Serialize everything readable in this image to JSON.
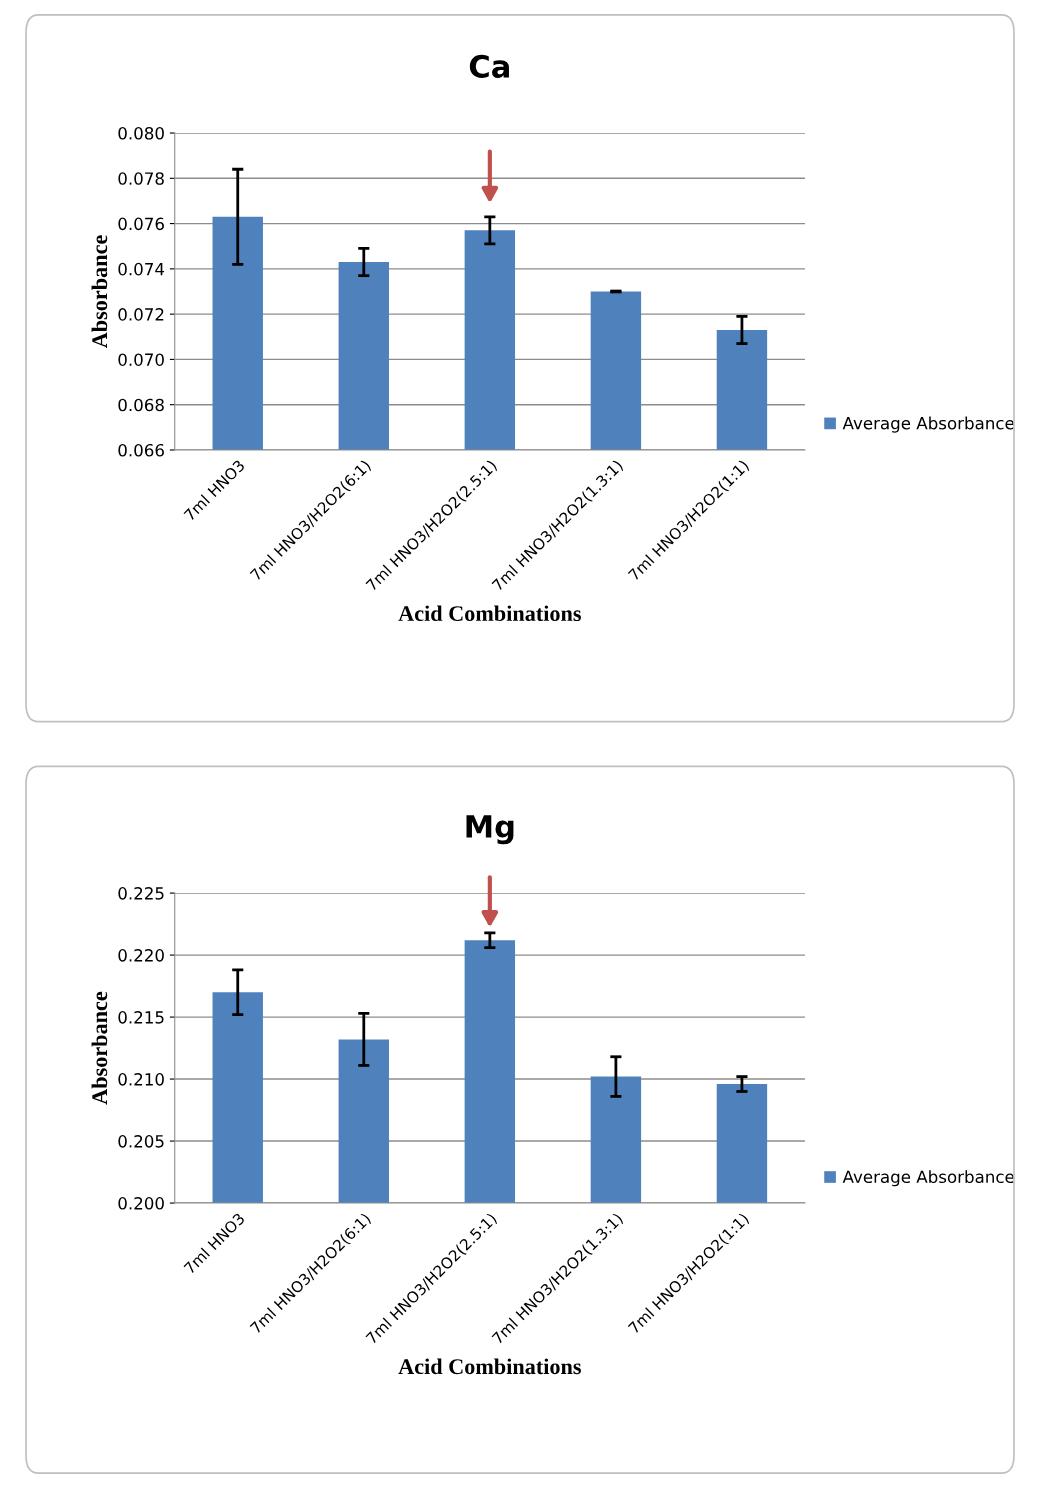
{
  "chart_data": [
    {
      "type": "bar",
      "title": "Ca",
      "xlabel": "Acid Combinations",
      "ylabel": "Absorbance",
      "categories": [
        "7ml HNO3",
        "7ml HNO3/H2O2(6:1)",
        "7ml HNO3/H2O2(2.5:1)",
        "7ml HNO3/H2O2(1.3:1)",
        "7ml HNO3/H2O2(1:1)"
      ],
      "series": [
        {
          "name": "Average Absorbance",
          "color": "#4f81bd",
          "values": [
            0.0763,
            0.0743,
            0.0757,
            0.073,
            0.0713
          ],
          "errors": [
            0.0021,
            0.0006,
            0.0006,
            2e-05,
            0.0006
          ]
        }
      ],
      "ylim": [
        0.066,
        0.08
      ],
      "yticks": [
        {
          "value": 0.066,
          "label": "0.066"
        },
        {
          "value": 0.068,
          "label": "0.068"
        },
        {
          "value": 0.07,
          "label": "0.070"
        },
        {
          "value": 0.072,
          "label": "0.072"
        },
        {
          "value": 0.074,
          "label": "0.074"
        },
        {
          "value": 0.076,
          "label": "0.076"
        },
        {
          "value": 0.078,
          "label": "0.078"
        },
        {
          "value": 0.08,
          "label": "0.080"
        }
      ],
      "grid": "y",
      "legend": "right"
    },
    {
      "type": "bar",
      "title": "Mg",
      "xlabel": "Acid Combinations",
      "ylabel": "Absorbance",
      "categories": [
        "7ml HNO3",
        "7ml HNO3/H2O2(6:1)",
        "7ml HNO3/H2O2(2.5:1)",
        "7ml HNO3/H2O2(1.3:1)",
        "7ml HNO3/H2O2(1:1)"
      ],
      "series": [
        {
          "name": "Average Absorbance",
          "color": "#4f81bd",
          "values": [
            0.217,
            0.2132,
            0.2212,
            0.2102,
            0.2096
          ],
          "errors": [
            0.0018,
            0.0021,
            0.0006,
            0.0016,
            0.0006
          ]
        }
      ],
      "ylim": [
        0.2,
        0.225
      ],
      "yticks": [
        {
          "value": 0.2,
          "label": "0.200"
        },
        {
          "value": 0.205,
          "label": "0.205"
        },
        {
          "value": 0.21,
          "label": "0.210"
        },
        {
          "value": 0.215,
          "label": "0.215"
        },
        {
          "value": 0.22,
          "label": "0.220"
        },
        {
          "value": 0.225,
          "label": "0.225"
        }
      ],
      "grid": "y",
      "legend": "right"
    }
  ]
}
